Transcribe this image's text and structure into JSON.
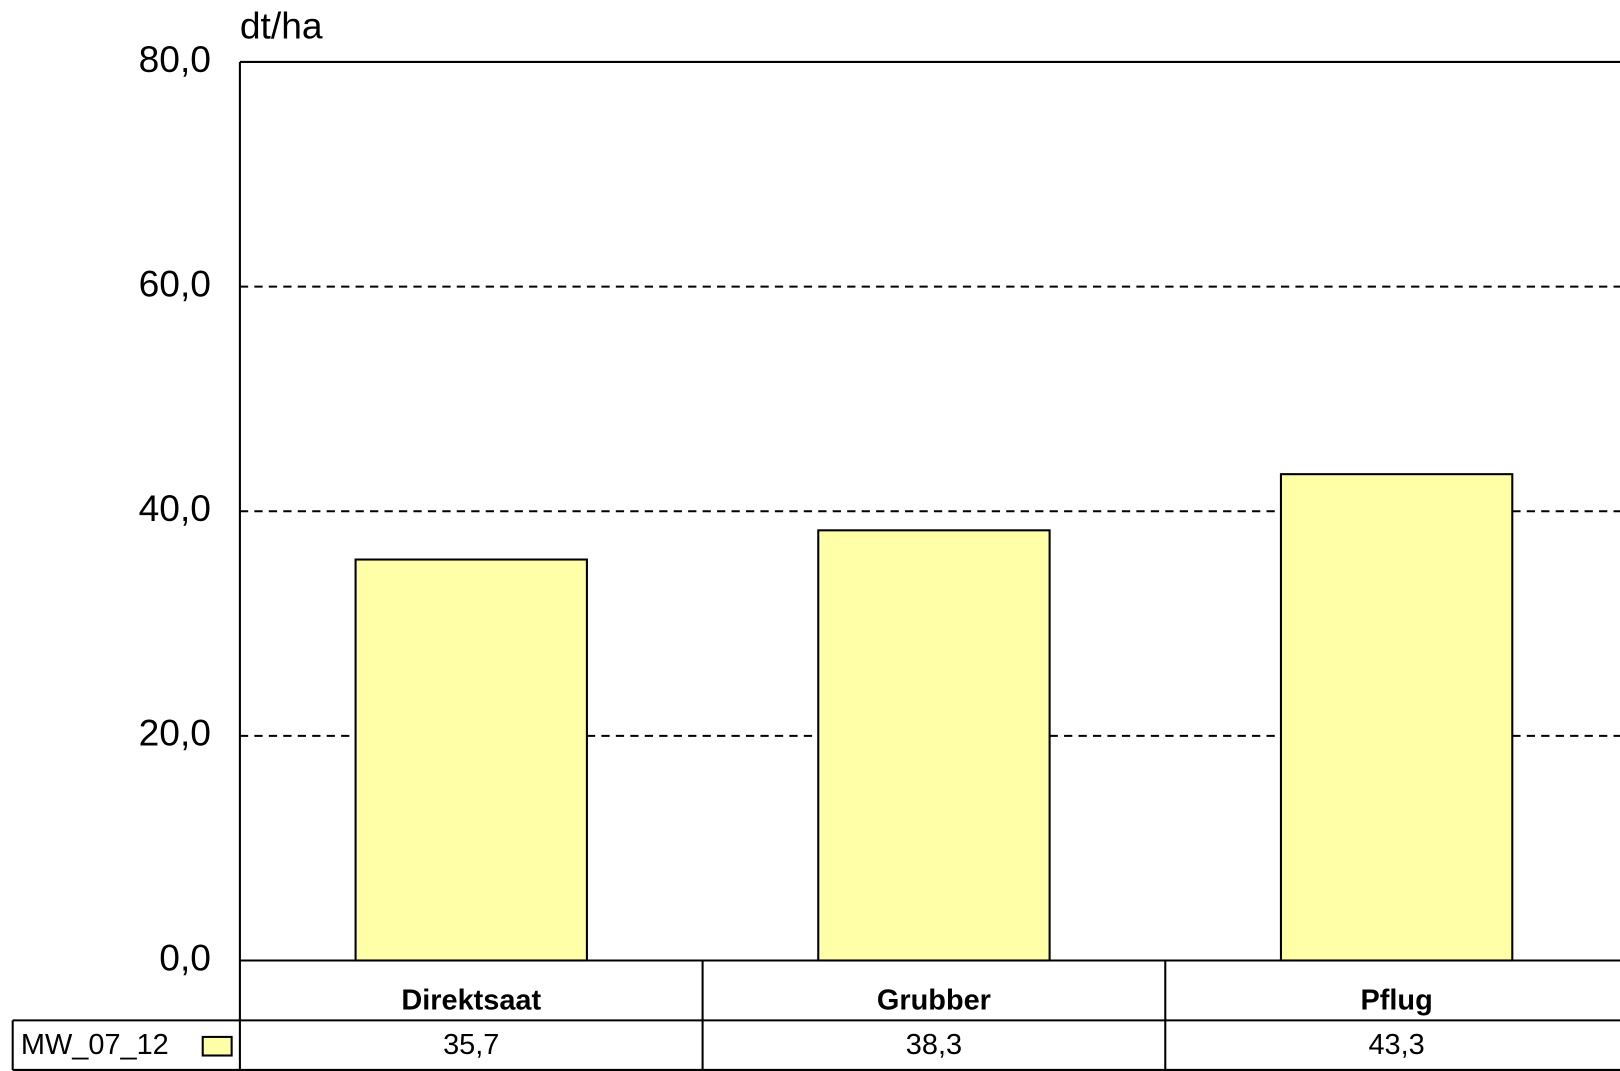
{
  "chart_data": {
    "type": "bar",
    "y_label": "dt/ha",
    "categories": [
      "Direktsaat",
      "Grubber",
      "Pflug"
    ],
    "series": [
      {
        "name": "MW_07_12",
        "color": "#ffffa8",
        "values": [
          35.7,
          38.3,
          43.3
        ],
        "value_labels": [
          "35,7",
          "38,3",
          "43,3"
        ]
      }
    ],
    "ylim": [
      0,
      80
    ],
    "yticks": [
      {
        "value": 0,
        "label": "0,0"
      },
      {
        "value": 20,
        "label": "20,0"
      },
      {
        "value": 40,
        "label": "40,0"
      },
      {
        "value": 60,
        "label": "60,0"
      },
      {
        "value": 80,
        "label": "80,0"
      }
    ],
    "grid": true
  }
}
